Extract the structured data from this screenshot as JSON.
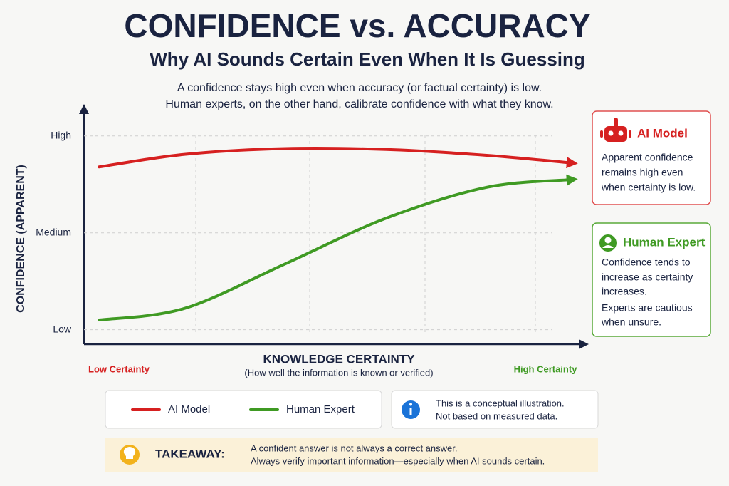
{
  "chart_data": {
    "type": "line",
    "title": "CONFIDENCE vs. ACCURACY",
    "subtitle": "Why AI Sounds Certain Even When It Is Guessing",
    "description": [
      "A confidence stays high even when accuracy (or factual certainty) is low.",
      "Human experts, on the other hand, calibrate confidence with what they know."
    ],
    "y_label": "CONFIDENCE (APPARENT)",
    "x_label": "KNOWLEDGE CERTAINTY",
    "x_sublabel": "(How well the information is known or verified)",
    "x_low_label": "Low Certainty",
    "x_high_label": "High Certainty",
    "x": [
      0.3,
      2,
      4,
      6,
      8,
      9.7
    ],
    "xlim": [
      0,
      10
    ],
    "ylim": [
      -0.15,
      2.3
    ],
    "yticks": [
      {
        "value": 0,
        "label": "Low"
      },
      {
        "value": 1,
        "label": "Medium"
      },
      {
        "value": 2,
        "label": "High"
      }
    ],
    "grid": true,
    "series": [
      {
        "name": "AI Model",
        "color": "#d62020",
        "values": [
          1.68,
          1.81,
          1.87,
          1.86,
          1.8,
          1.72
        ]
      },
      {
        "name": "Human Expert",
        "color": "#3f9a23",
        "values": [
          0.1,
          0.22,
          0.68,
          1.15,
          1.47,
          1.55
        ]
      }
    ],
    "callouts": [
      {
        "title": "AI Model",
        "lines": [
          "Apparent confidence",
          "remains high even",
          "when certainty is low."
        ]
      },
      {
        "title": "Human Expert",
        "lines": [
          "Confidence tends to",
          "increase as certainty",
          "increases.",
          "Experts are cautious",
          "when unsure."
        ]
      }
    ],
    "note": [
      "This is a conceptual illustration.",
      "Not based on measured data."
    ],
    "takeaway": {
      "label": "TAKEAWAY:",
      "lines": [
        "A confident answer is not always a correct answer.",
        "Always verify important information—especially when AI sounds certain."
      ]
    }
  }
}
